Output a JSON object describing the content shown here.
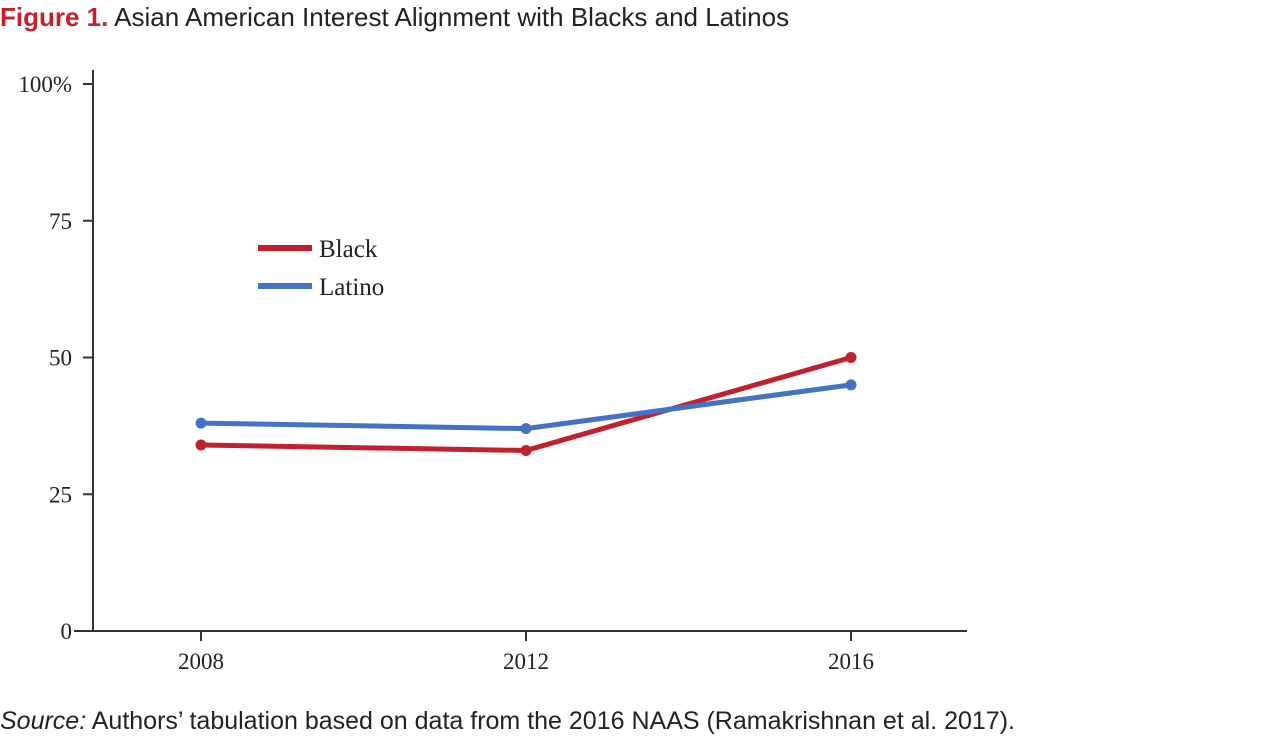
{
  "figure": {
    "label": "Figure 1.",
    "title": "Asian American Interest Alignment with Blacks and Latinos"
  },
  "source": {
    "prefix": "Source:",
    "text": " Authors’ tabulation based on data from the 2016 NAAS (Ramakrishnan et al. 2017)."
  },
  "chart_data": {
    "type": "line",
    "title": "Asian American Interest Alignment with Blacks and Latinos",
    "xlabel": "",
    "ylabel": "",
    "categories": [
      "2008",
      "2012",
      "2016"
    ],
    "y_ticks": [
      "0",
      "25",
      "50",
      "75",
      "100%"
    ],
    "ylim": [
      0,
      100
    ],
    "grid": false,
    "legend_position": "upper-left",
    "series": [
      {
        "name": "Black",
        "color": "#c3202e",
        "values": [
          34,
          33,
          50
        ]
      },
      {
        "name": "Latino",
        "color": "#4472c4",
        "values": [
          38,
          37,
          45
        ]
      }
    ]
  }
}
